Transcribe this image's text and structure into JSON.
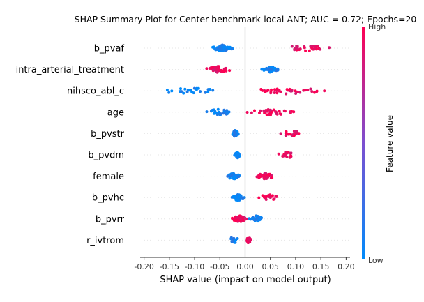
{
  "chart_data": {
    "type": "scatter",
    "title": "SHAP Summary Plot for Center benchmark-local-ANT; AUC = 0.72; Epochs=20",
    "xlabel": "SHAP value (impact on model output)",
    "ylabel": "",
    "xlim": [
      -0.205,
      0.205
    ],
    "xticks": [
      "-0.20",
      "-0.15",
      "-0.10",
      "-0.05",
      "0.00",
      "0.05",
      "0.10",
      "0.15",
      "0.20"
    ],
    "xtick_values": [
      -0.2,
      -0.15,
      -0.1,
      -0.05,
      0,
      0.05,
      0.1,
      0.15,
      0.2
    ],
    "grid": false,
    "colorbar": {
      "label": "Feature value",
      "high": "High",
      "low": "Low",
      "colors": [
        "#008bfb",
        "#ff0052"
      ]
    },
    "features": [
      {
        "name": "b_pvaf",
        "low": {
          "min": -0.068,
          "max": -0.022,
          "n": 60
        },
        "high": {
          "min": 0.065,
          "max": 0.175,
          "n": 30
        }
      },
      {
        "name": "intra_arterial_treatment",
        "low": {
          "min": 0.028,
          "max": 0.072,
          "n": 45
        },
        "high": {
          "min": -0.08,
          "max": -0.025,
          "n": 45
        }
      },
      {
        "name": "nihsco_abl_c",
        "low": {
          "min": -0.185,
          "max": -0.04,
          "n": 25
        },
        "high": {
          "min": -0.01,
          "max": 0.18,
          "n": 40
        }
      },
      {
        "name": "age",
        "low": {
          "min": -0.09,
          "max": -0.01,
          "n": 30
        },
        "high": {
          "min": -0.005,
          "max": 0.11,
          "n": 45
        }
      },
      {
        "name": "b_pvstr",
        "low": {
          "min": -0.028,
          "max": -0.012,
          "n": 50
        },
        "high": {
          "min": 0.058,
          "max": 0.125,
          "n": 18
        }
      },
      {
        "name": "b_pvdm",
        "low": {
          "min": -0.022,
          "max": -0.008,
          "n": 50
        },
        "high": {
          "min": 0.058,
          "max": 0.112,
          "n": 18
        }
      },
      {
        "name": "female",
        "low": {
          "min": -0.04,
          "max": -0.008,
          "n": 45
        },
        "high": {
          "min": 0.015,
          "max": 0.065,
          "n": 40
        }
      },
      {
        "name": "b_pvhc",
        "low": {
          "min": -0.028,
          "max": 0.0,
          "n": 50
        },
        "high": {
          "min": 0.02,
          "max": 0.075,
          "n": 20
        }
      },
      {
        "name": "b_pvrr",
        "low": {
          "min": 0.005,
          "max": 0.04,
          "n": 30
        },
        "high": {
          "min": -0.03,
          "max": 0.008,
          "n": 50
        }
      },
      {
        "name": "r_ivtrom",
        "low": {
          "min": -0.04,
          "max": -0.008,
          "n": 14
        },
        "high": {
          "min": 0.002,
          "max": 0.012,
          "n": 60
        }
      }
    ]
  }
}
